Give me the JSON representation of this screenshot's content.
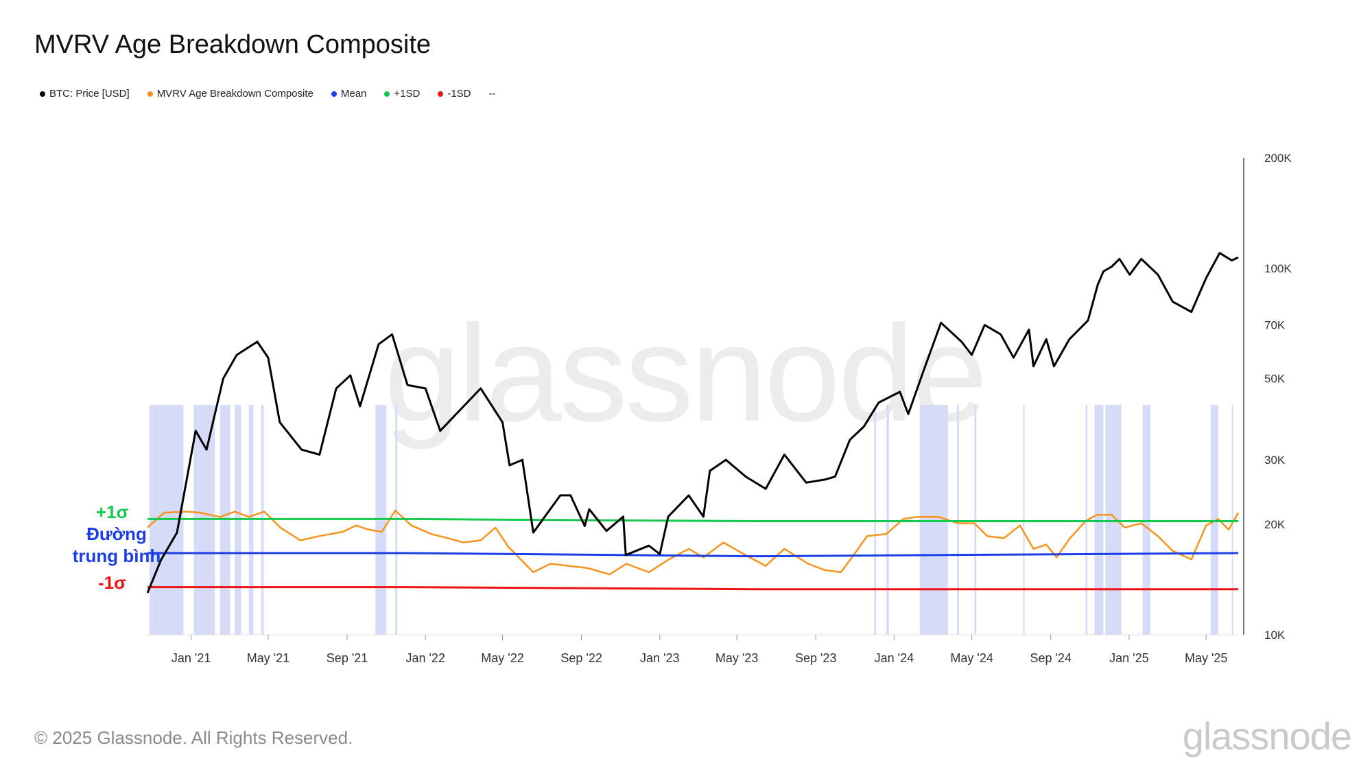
{
  "title": "MVRV Age Breakdown Composite",
  "legend": [
    {
      "label": "BTC: Price [USD]",
      "color": "#000000"
    },
    {
      "label": "MVRV Age Breakdown Composite",
      "color": "#f7931a"
    },
    {
      "label": "Mean",
      "color": "#1a3fe6"
    },
    {
      "label": "+1SD",
      "color": "#16c94e"
    },
    {
      "label": "-1SD",
      "color": "#ee1111"
    },
    {
      "label": "--",
      "color": "#ffffff"
    }
  ],
  "annotations": {
    "plus_sd": "+1σ",
    "mean": "Đường trung bình",
    "minus_sd": "-1σ"
  },
  "footer": "© 2025 Glassnode. All Rights Reserved.",
  "brand": "glassnode",
  "chart_data": {
    "type": "line",
    "y_axis": {
      "scale": "log",
      "range": [
        10000,
        200000
      ],
      "ticks": [
        "10K",
        "20K",
        "30K",
        "50K",
        "70K",
        "100K",
        "200K"
      ],
      "tick_values": [
        10000,
        20000,
        30000,
        50000,
        70000,
        100000,
        200000
      ]
    },
    "x_ticks": [
      {
        "label": "Jan '21",
        "date": "2021-01-01"
      },
      {
        "label": "May '21",
        "date": "2021-05-01"
      },
      {
        "label": "Sep '21",
        "date": "2021-09-01"
      },
      {
        "label": "Jan '22",
        "date": "2022-01-01"
      },
      {
        "label": "May '22",
        "date": "2022-05-01"
      },
      {
        "label": "Sep '22",
        "date": "2022-09-01"
      },
      {
        "label": "Jan '23",
        "date": "2023-01-01"
      },
      {
        "label": "May '23",
        "date": "2023-05-01"
      },
      {
        "label": "Sep '23",
        "date": "2023-09-01"
      },
      {
        "label": "Jan '24",
        "date": "2024-01-01"
      },
      {
        "label": "May '24",
        "date": "2024-05-01"
      },
      {
        "label": "Sep '24",
        "date": "2024-09-01"
      },
      {
        "label": "Jan '25",
        "date": "2025-01-01"
      },
      {
        "label": "May '25",
        "date": "2025-05-01"
      }
    ],
    "x_range": [
      "2020-10-25",
      "2025-06-20"
    ],
    "series": [
      {
        "name": "BTC: Price [USD]",
        "color": "#000000",
        "x": [
          "2020-10-25",
          "2020-11-15",
          "2020-12-10",
          "2021-01-08",
          "2021-01-25",
          "2021-02-20",
          "2021-03-13",
          "2021-04-14",
          "2021-05-01",
          "2021-05-19",
          "2021-06-22",
          "2021-07-20",
          "2021-08-15",
          "2021-09-06",
          "2021-09-21",
          "2021-10-20",
          "2021-11-10",
          "2021-12-04",
          "2022-01-01",
          "2022-01-24",
          "2022-03-28",
          "2022-05-01",
          "2022-05-12",
          "2022-06-01",
          "2022-06-18",
          "2022-07-30",
          "2022-08-15",
          "2022-09-06",
          "2022-09-13",
          "2022-10-10",
          "2022-11-05",
          "2022-11-09",
          "2022-12-15",
          "2023-01-01",
          "2023-01-14",
          "2023-02-15",
          "2023-03-10",
          "2023-03-20",
          "2023-04-14",
          "2023-05-15",
          "2023-06-15",
          "2023-07-14",
          "2023-08-17",
          "2023-09-15",
          "2023-10-01",
          "2023-10-24",
          "2023-11-15",
          "2023-12-08",
          "2024-01-10",
          "2024-01-23",
          "2024-02-15",
          "2024-03-14",
          "2024-04-15",
          "2024-05-01",
          "2024-05-21",
          "2024-06-15",
          "2024-07-05",
          "2024-07-29",
          "2024-08-05",
          "2024-08-25",
          "2024-09-06",
          "2024-09-30",
          "2024-10-29",
          "2024-11-13",
          "2024-11-22",
          "2024-12-05",
          "2024-12-17",
          "2025-01-02",
          "2025-01-20",
          "2025-02-15",
          "2025-03-10",
          "2025-04-08",
          "2025-05-01",
          "2025-05-22",
          "2025-06-10",
          "2025-06-20"
        ],
        "y": [
          13000,
          16000,
          19000,
          36000,
          32000,
          50000,
          58000,
          63000,
          57000,
          38000,
          32000,
          31000,
          47000,
          51000,
          42000,
          62000,
          66000,
          48000,
          47000,
          36000,
          47000,
          38000,
          29000,
          30000,
          19000,
          24000,
          24000,
          19800,
          22000,
          19200,
          21000,
          16500,
          17500,
          16600,
          21000,
          24000,
          21000,
          28000,
          30000,
          27000,
          25000,
          31000,
          26000,
          26500,
          27000,
          34000,
          37000,
          43000,
          46000,
          40000,
          52000,
          71000,
          63000,
          58000,
          70000,
          66000,
          57000,
          68000,
          54000,
          64000,
          54000,
          64000,
          72000,
          90000,
          98000,
          101000,
          106000,
          96000,
          106000,
          96000,
          81000,
          76000,
          94000,
          110000,
          105000,
          107000
        ]
      },
      {
        "name": "MVRV Age Breakdown Composite",
        "color": "#f7931a",
        "x": [
          "2020-10-25",
          "2020-11-20",
          "2020-12-25",
          "2021-01-15",
          "2021-02-15",
          "2021-03-10",
          "2021-04-01",
          "2021-04-25",
          "2021-05-20",
          "2021-06-20",
          "2021-07-20",
          "2021-08-25",
          "2021-09-15",
          "2021-10-05",
          "2021-10-25",
          "2021-11-15",
          "2021-12-10",
          "2022-01-10",
          "2022-02-05",
          "2022-03-01",
          "2022-03-28",
          "2022-04-20",
          "2022-05-10",
          "2022-06-18",
          "2022-07-15",
          "2022-08-12",
          "2022-09-10",
          "2022-10-15",
          "2022-11-10",
          "2022-12-15",
          "2023-01-15",
          "2023-02-15",
          "2023-03-10",
          "2023-04-10",
          "2023-05-15",
          "2023-06-15",
          "2023-07-14",
          "2023-08-20",
          "2023-09-15",
          "2023-10-10",
          "2023-10-25",
          "2023-11-20",
          "2023-12-20",
          "2024-01-15",
          "2024-02-05",
          "2024-03-10",
          "2024-04-10",
          "2024-05-05",
          "2024-05-25",
          "2024-06-20",
          "2024-07-15",
          "2024-08-05",
          "2024-08-25",
          "2024-09-10",
          "2024-10-01",
          "2024-10-25",
          "2024-11-12",
          "2024-12-05",
          "2024-12-25",
          "2025-01-20",
          "2025-02-15",
          "2025-03-10",
          "2025-04-08",
          "2025-05-01",
          "2025-05-20",
          "2025-06-05",
          "2025-06-20"
        ],
        "y": [
          1.2,
          1.9,
          1.95,
          1.9,
          1.7,
          1.95,
          1.7,
          1.95,
          1.2,
          0.6,
          0.8,
          1.0,
          1.3,
          1.1,
          1.0,
          2.0,
          1.3,
          0.9,
          0.7,
          0.5,
          0.6,
          1.2,
          0.3,
          -0.9,
          -0.5,
          -0.6,
          -0.7,
          -1.0,
          -0.5,
          -0.9,
          -0.3,
          0.2,
          -0.2,
          0.5,
          -0.1,
          -0.6,
          0.2,
          -0.5,
          -0.8,
          -0.9,
          -0.3,
          0.8,
          0.9,
          1.6,
          1.7,
          1.7,
          1.4,
          1.4,
          0.8,
          0.7,
          1.3,
          0.2,
          0.4,
          -0.2,
          0.7,
          1.5,
          1.8,
          1.8,
          1.2,
          1.4,
          0.8,
          0.1,
          -0.3,
          1.3,
          1.6,
          1.1,
          1.9
        ]
      },
      {
        "name": "Mean",
        "color": "#1a3fe6",
        "x": [
          "2020-10-25",
          "2021-12-01",
          "2023-06-01",
          "2025-06-20"
        ],
        "y": [
          0.0,
          0.0,
          -0.15,
          0.0
        ]
      },
      {
        "name": "+1SD",
        "color": "#16c94e",
        "x": [
          "2020-10-25",
          "2021-12-01",
          "2023-06-01",
          "2025-06-20"
        ],
        "y": [
          1.6,
          1.6,
          1.5,
          1.5
        ]
      },
      {
        "name": "-1SD",
        "color": "#ee1111",
        "x": [
          "2020-10-25",
          "2021-12-01",
          "2023-06-01",
          "2025-06-20"
        ],
        "y": [
          -1.6,
          -1.6,
          -1.7,
          -1.7
        ]
      }
    ],
    "highlight_bands": [
      [
        "2020-10-28",
        "2020-12-20"
      ],
      [
        "2021-01-05",
        "2021-02-07"
      ],
      [
        "2021-02-15",
        "2021-03-03"
      ],
      [
        "2021-03-10",
        "2021-03-20"
      ],
      [
        "2021-04-01",
        "2021-04-08"
      ],
      [
        "2021-04-20",
        "2021-04-24"
      ],
      [
        "2021-10-15",
        "2021-11-01"
      ],
      [
        "2021-11-15",
        "2021-11-18"
      ],
      [
        "2023-12-01",
        "2023-12-04"
      ],
      [
        "2023-12-20",
        "2023-12-24"
      ],
      [
        "2024-02-10",
        "2024-03-25"
      ],
      [
        "2024-04-08",
        "2024-04-11"
      ],
      [
        "2024-05-05",
        "2024-05-08"
      ],
      [
        "2024-07-20",
        "2024-07-22"
      ],
      [
        "2024-10-25",
        "2024-10-28"
      ],
      [
        "2024-11-08",
        "2024-11-22"
      ],
      [
        "2024-11-25",
        "2024-12-20"
      ],
      [
        "2025-01-22",
        "2025-02-03"
      ],
      [
        "2025-05-08",
        "2025-05-20"
      ],
      [
        "2025-06-10",
        "2025-06-12"
      ]
    ]
  }
}
